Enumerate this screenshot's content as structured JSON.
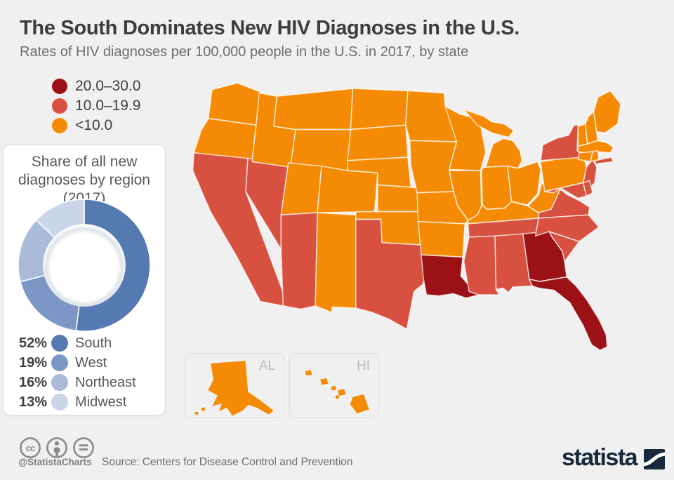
{
  "header": {
    "title": "The South Dominates New HIV Diagnoses in the U.S.",
    "subtitle": "Rates of HIV diagnoses per 100,000 people in the U.S. in 2017, by state"
  },
  "insets": {
    "alaska_label": "AL",
    "hawaii_label": "HI"
  },
  "footer": {
    "handle": "@StatistaCharts",
    "source": "Source: Centers for Disease Control and Prevention",
    "license_icons": [
      "cc",
      "by",
      "nd"
    ],
    "logo_text": "statista"
  },
  "colors": {
    "background": "#f0f0f0",
    "state_border": "#ffffff"
  },
  "chart_data": [
    {
      "type": "choropleth",
      "title": "Rates of HIV diagnoses per 100,000 people in the U.S. in 2017, by state",
      "legend_position": "top-left",
      "bins": [
        {
          "range_label": "20.0–30.0",
          "color": "#9c1115",
          "states": [
            "GA",
            "FL",
            "LA"
          ]
        },
        {
          "range_label": "10.0–19.9",
          "color": "#d8503f",
          "states": [
            "NY",
            "NJ",
            "MD",
            "DE",
            "VA",
            "NC",
            "SC",
            "TN",
            "MS",
            "AL",
            "TX",
            "AZ",
            "NV",
            "CA"
          ]
        },
        {
          "range_label": "<10.0",
          "color": "#f58b05",
          "states": [
            "WA",
            "OR",
            "ID",
            "MT",
            "WY",
            "UT",
            "CO",
            "NM",
            "ND",
            "SD",
            "NE",
            "KS",
            "OK",
            "AR",
            "MO",
            "IA",
            "MN",
            "WI",
            "IL",
            "MI",
            "IN",
            "OH",
            "KY",
            "WV",
            "PA",
            "VT",
            "NH",
            "ME",
            "MA",
            "CT",
            "RI",
            "AK",
            "HI"
          ]
        }
      ]
    },
    {
      "type": "donut",
      "title": "Share of all new diagnoses by region (2017)",
      "start_angle": "12 o'clock",
      "direction": "clockwise",
      "slices": [
        {
          "label": "South",
          "value": 52,
          "value_label": "52%",
          "color": "#557ab1"
        },
        {
          "label": "West",
          "value": 19,
          "value_label": "19%",
          "color": "#7c97c6"
        },
        {
          "label": "Northeast",
          "value": 16,
          "value_label": "16%",
          "color": "#a9bbd9"
        },
        {
          "label": "Midwest",
          "value": 13,
          "value_label": "13%",
          "color": "#cad5e8"
        }
      ]
    }
  ]
}
